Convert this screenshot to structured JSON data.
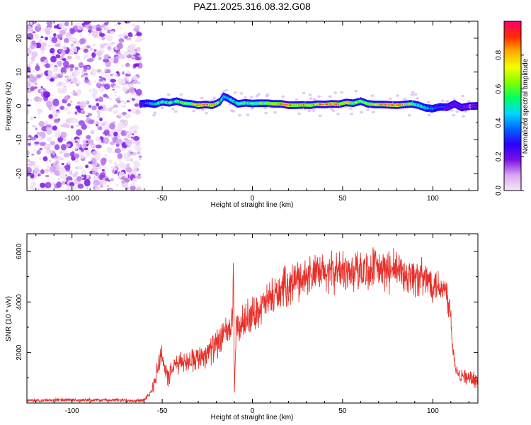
{
  "title": "PAZ1.2025.316.08.32.G08",
  "chart_data": [
    {
      "type": "heatmap",
      "xlabel": "Height of straight line (km)",
      "ylabel": "Frequency (Hz)",
      "xlim": [
        -125,
        125
      ],
      "ylim": [
        -25,
        25
      ],
      "x_ticks": [
        -100,
        -50,
        0,
        50,
        100
      ],
      "y_ticks": [
        -20,
        -10,
        0,
        10,
        20
      ],
      "noise_region_x": [
        -125,
        -62
      ],
      "signal_trace": {
        "x": [
          -62,
          -58,
          -54,
          -50,
          -46,
          -42,
          -38,
          -34,
          -30,
          -26,
          -22,
          -18,
          -16,
          -14,
          -12,
          -10,
          -8,
          -4,
          0,
          4,
          8,
          12,
          16,
          20,
          24,
          28,
          32,
          36,
          40,
          44,
          48,
          52,
          56,
          60,
          64,
          68,
          72,
          76,
          80,
          84,
          88,
          92,
          96,
          100,
          104,
          108,
          112,
          116,
          120,
          125
        ],
        "frequency_hz": [
          0.6,
          0.8,
          0.5,
          1.2,
          0.9,
          1.4,
          0.8,
          0.6,
          0.2,
          0.4,
          0.2,
          1.2,
          2.8,
          2.4,
          1.8,
          1.2,
          0.6,
          0.9,
          0.7,
          0.8,
          0.8,
          0.6,
          0.6,
          0.2,
          0.2,
          0.3,
          0.2,
          0.5,
          0.4,
          0.6,
          0.5,
          1.0,
          0.8,
          1.4,
          0.6,
          0.4,
          0.4,
          0.3,
          0.2,
          0.4,
          0.6,
          0.2,
          -0.6,
          -0.8,
          -0.3,
          -0.4,
          0.6,
          -0.5,
          -0.1,
          0.0
        ],
        "amplitude": [
          0.25,
          0.4,
          0.5,
          0.6,
          0.6,
          0.6,
          0.65,
          0.7,
          0.85,
          0.9,
          0.9,
          0.55,
          0.5,
          0.5,
          0.55,
          0.55,
          0.6,
          0.6,
          0.6,
          0.7,
          0.75,
          0.75,
          0.8,
          0.9,
          0.85,
          0.8,
          0.75,
          0.8,
          0.85,
          0.9,
          0.85,
          0.8,
          0.7,
          0.65,
          0.7,
          0.7,
          0.85,
          0.9,
          0.9,
          0.8,
          0.7,
          0.6,
          0.5,
          0.4,
          0.35,
          0.3,
          0.25,
          0.25,
          0.2,
          0.2
        ]
      },
      "colorbar": {
        "label": "Normalized spectral amplitude",
        "range": [
          0.0,
          1.0
        ],
        "ticks": [
          0.0,
          0.2,
          0.4,
          0.6,
          0.8
        ],
        "tick_labels": [
          "0.0",
          "0.2",
          "0.4",
          "0.6",
          "0.8"
        ],
        "colors": [
          "#f5e8f8",
          "#d9a6f0",
          "#7b10e6",
          "#2a00ff",
          "#0066ff",
          "#00d8ff",
          "#00ff66",
          "#7dff00",
          "#f2ff00",
          "#ffb000",
          "#ff2a00",
          "#ff006e"
        ]
      }
    },
    {
      "type": "line",
      "xlabel": "Height of straight line (km)",
      "ylabel": "SNR (10 * v/v)",
      "xlim": [
        -125,
        125
      ],
      "ylim": [
        0,
        6700
      ],
      "x_ticks": [
        -100,
        -50,
        0,
        50,
        100
      ],
      "y_ticks": [
        2000,
        4000,
        6000
      ],
      "color": "#e8302a",
      "series": [
        {
          "name": "SNR",
          "x": [
            -125,
            -110,
            -95,
            -80,
            -65,
            -60,
            -57,
            -55,
            -53,
            -51,
            -50,
            -49,
            -47,
            -45,
            -43,
            -40,
            -35,
            -30,
            -25,
            -20,
            -15,
            -12,
            -11,
            -10.5,
            -10,
            -9,
            -7,
            -5,
            -2,
            0,
            5,
            10,
            15,
            20,
            25,
            30,
            35,
            40,
            45,
            50,
            55,
            60,
            65,
            70,
            75,
            80,
            85,
            90,
            95,
            100,
            105,
            108,
            110,
            111,
            113,
            116,
            120,
            125
          ],
          "values": [
            100,
            120,
            110,
            120,
            100,
            120,
            300,
            700,
            1300,
            1800,
            2000,
            1500,
            1000,
            1200,
            1500,
            1600,
            1700,
            1800,
            2000,
            2300,
            2700,
            3000,
            3200,
            5800,
            300,
            2900,
            3000,
            3200,
            3400,
            3500,
            3800,
            4100,
            4400,
            4700,
            4900,
            5000,
            5100,
            5100,
            5200,
            5250,
            5200,
            5300,
            5250,
            5300,
            5200,
            5250,
            5100,
            5000,
            4900,
            4800,
            4600,
            4300,
            3500,
            2200,
            1300,
            1100,
            1000,
            800
          ]
        }
      ],
      "noise_amplitude": [
        70,
        70,
        70,
        70,
        70,
        90,
        150,
        300,
        500,
        500,
        500,
        400,
        400,
        400,
        400,
        400,
        450,
        500,
        550,
        600,
        650,
        600,
        600,
        0,
        0,
        600,
        650,
        700,
        700,
        700,
        700,
        750,
        750,
        800,
        800,
        800,
        800,
        800,
        800,
        800,
        800,
        850,
        850,
        850,
        850,
        800,
        800,
        800,
        800,
        750,
        700,
        700,
        600,
        300,
        300,
        300,
        300,
        250
      ]
    }
  ]
}
